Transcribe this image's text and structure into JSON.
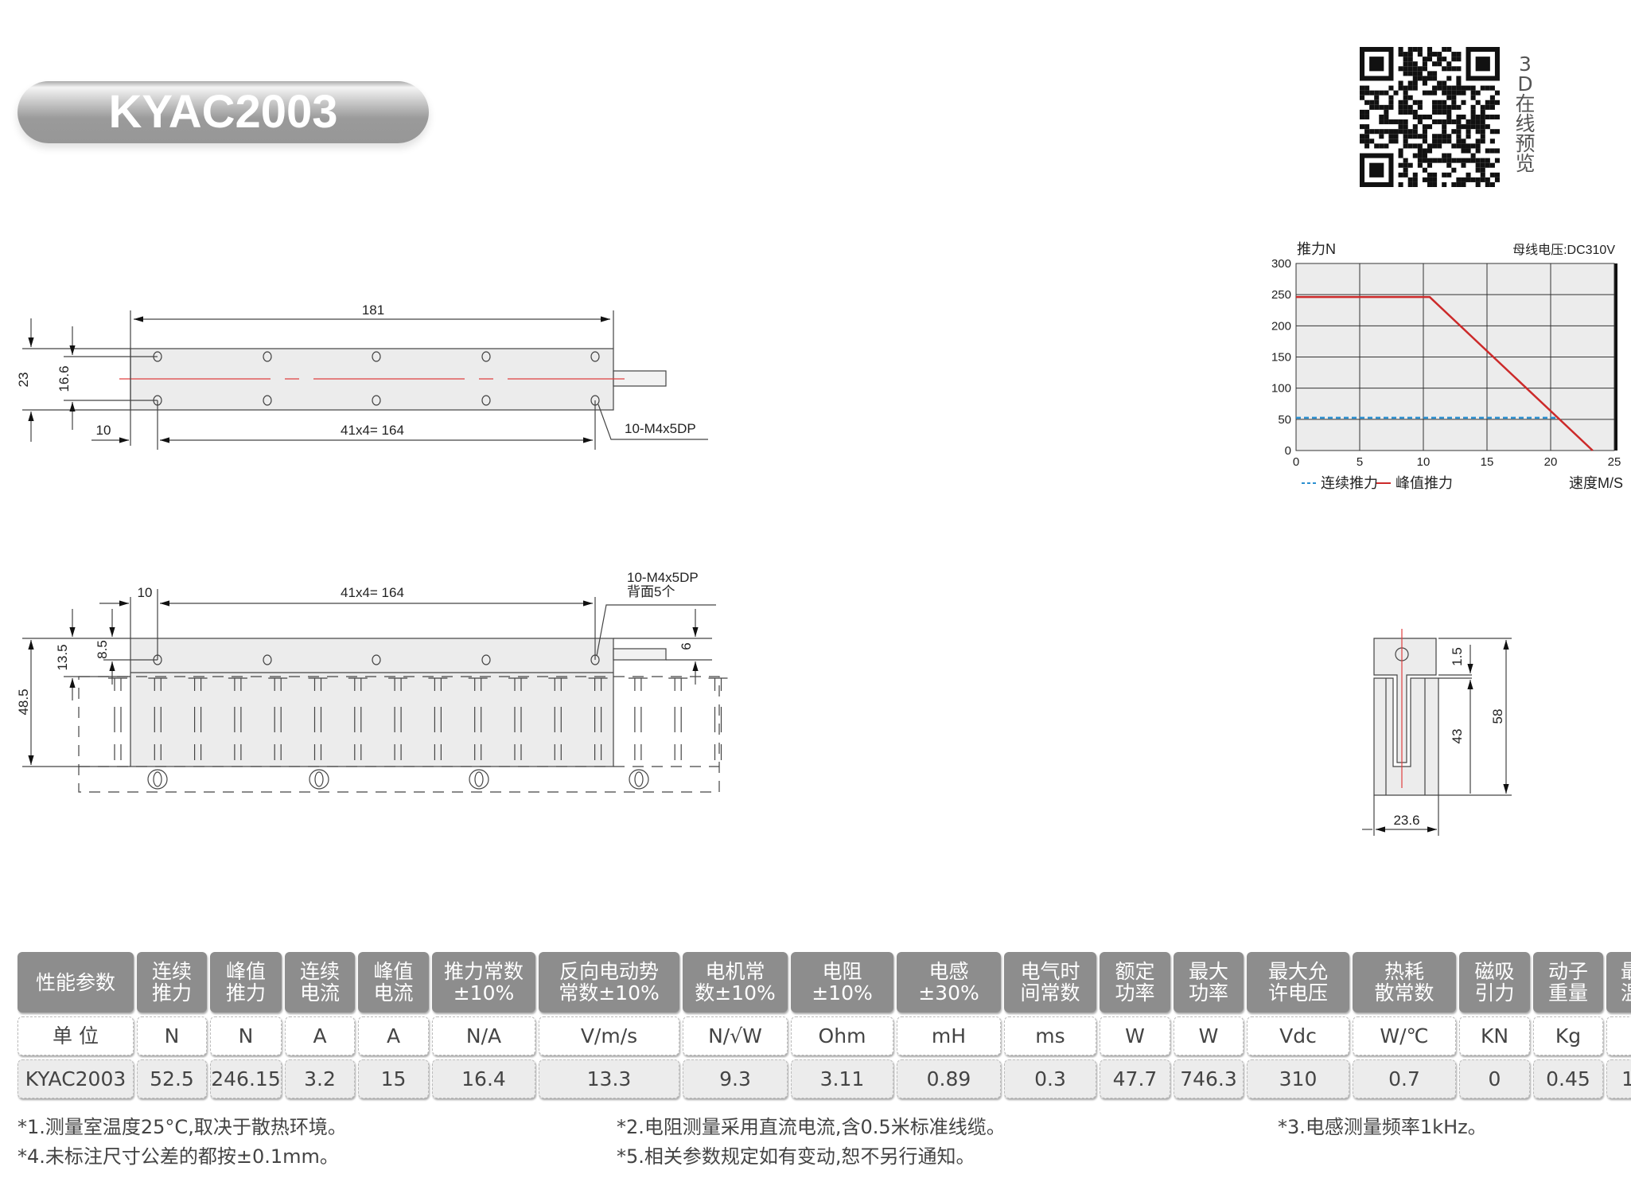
{
  "title": "KYAC2003",
  "qr_label": "3D在线预览",
  "drawings": {
    "top_view": {
      "length": "181",
      "width": "23",
      "hole_pitch_v": "16.6",
      "edge": "10",
      "pitch": "41x4= 164",
      "holes": "10-M4x5DP"
    },
    "side_view": {
      "edge": "10",
      "pitch": "41x4= 164",
      "holes": "10-M4x5DP",
      "holes_note": "背面5个",
      "height_total": "48.5",
      "height_mover": "13.5",
      "hole_height": "8.5",
      "shaft": "6"
    },
    "end_view": {
      "gap": "1.5",
      "stator": "43",
      "total": "58",
      "width": "23.6"
    }
  },
  "chart_data": {
    "type": "line",
    "ylabel": "推力N",
    "annotation": "母线电压:DC310V",
    "xlabel": "速度M/S",
    "xlim": [
      0,
      25
    ],
    "ylim": [
      0,
      300
    ],
    "xticks": [
      "0",
      "5",
      "10",
      "15",
      "20",
      "25"
    ],
    "yticks": [
      "0",
      "50",
      "100",
      "150",
      "200",
      "250",
      "300"
    ],
    "grid": true,
    "legend_position": "bottom-left",
    "series": [
      {
        "name": "连续推力",
        "color": "#2a8fd0",
        "style": "dashed",
        "points": [
          [
            0,
            52.5
          ],
          [
            20.5,
            52.5
          ]
        ]
      },
      {
        "name": "峰值推力",
        "color": "#cc2a2a",
        "style": "solid",
        "points": [
          [
            0,
            246.15
          ],
          [
            10.5,
            246.15
          ],
          [
            23.3,
            0
          ]
        ]
      }
    ]
  },
  "table": {
    "headers": [
      "性能参数",
      "连续\n推力",
      "峰值\n推力",
      "连续\n电流",
      "峰值\n电流",
      "推力常数\n±10%",
      "反向电动势\n常数±10%",
      "电机常\n数±10%",
      "电阻\n±10%",
      "电感\n±30%",
      "电气时\n间常数",
      "额定\n功率",
      "最大\n功率",
      "最大允\n许电压",
      "热耗\n散常数",
      "磁吸\n引力",
      "动子\n重量",
      "最高\n温度"
    ],
    "units": [
      "单 位",
      "N",
      "N",
      "A",
      "A",
      "N/A",
      "V/m/s",
      "N/√W",
      "Ohm",
      "mH",
      "ms",
      "W",
      "W",
      "Vdc",
      "W/℃",
      "KN",
      "Kg",
      "℃"
    ],
    "values": [
      "KYAC2003",
      "52.5",
      "246.15",
      "3.2",
      "15",
      "16.4",
      "13.3",
      "9.3",
      "3.11",
      "0.89",
      "0.3",
      "47.7",
      "746.3",
      "310",
      "0.7",
      "0",
      "0.45",
      "100"
    ]
  },
  "notes": [
    "*1.测量室温度25°C,取决于散热环境。",
    "*2.电阻测量采用直流电流,含0.5米标准线缆。",
    "*3.电感测量频率1kHz。",
    "*4.未标注尺寸公差的都按±0.1mm。",
    "*5.相关参数规定如有变动,恕不另行通知。"
  ]
}
